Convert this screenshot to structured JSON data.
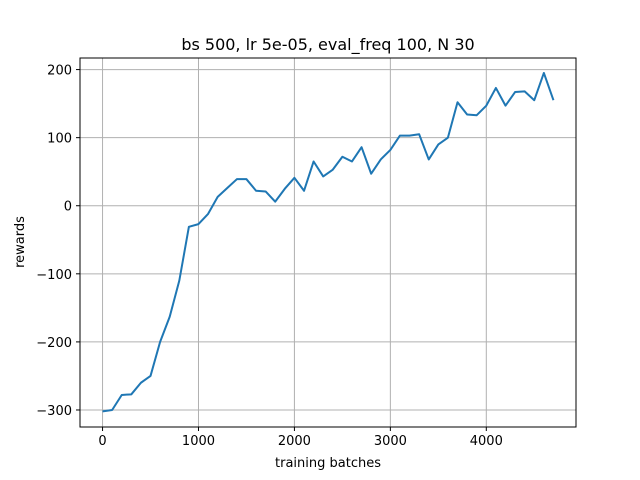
{
  "chart_data": {
    "type": "line",
    "title": "bs 500, lr 5e-05, eval_freq 100, N 30",
    "xlabel": "training batches",
    "ylabel": "rewards",
    "xlim": [
      -235,
      4935
    ],
    "ylim": [
      -325,
      217
    ],
    "grid": true,
    "xticks": [
      0,
      1000,
      2000,
      3000,
      4000
    ],
    "xtick_labels": [
      "0",
      "1000",
      "2000",
      "3000",
      "4000"
    ],
    "yticks": [
      -300,
      -200,
      -100,
      0,
      100,
      200
    ],
    "ytick_labels": [
      "−300",
      "−200",
      "−100",
      "0",
      "100",
      "200"
    ],
    "series": [
      {
        "color": "#1f77b4",
        "x": [
          0,
          100,
          200,
          300,
          400,
          500,
          600,
          700,
          800,
          900,
          1000,
          1100,
          1200,
          1300,
          1400,
          1500,
          1600,
          1700,
          1800,
          1900,
          2000,
          2100,
          2200,
          2300,
          2400,
          2500,
          2600,
          2700,
          2800,
          2900,
          3000,
          3100,
          3200,
          3300,
          3400,
          3500,
          3600,
          3700,
          3800,
          3900,
          4000,
          4100,
          4200,
          4300,
          4400,
          4500,
          4600,
          4700
        ],
        "y": [
          -302,
          -300,
          -278,
          -277,
          -260,
          -250,
          -200,
          -163,
          -110,
          -31,
          -27,
          -12,
          13,
          26,
          39,
          39,
          22,
          21,
          6,
          25,
          41,
          22,
          65,
          43,
          53,
          72,
          65,
          86,
          47,
          68,
          82,
          103,
          103,
          105,
          68,
          90,
          100,
          152,
          134,
          133,
          147,
          173,
          147,
          167,
          168,
          155,
          195,
          155
        ]
      }
    ]
  }
}
